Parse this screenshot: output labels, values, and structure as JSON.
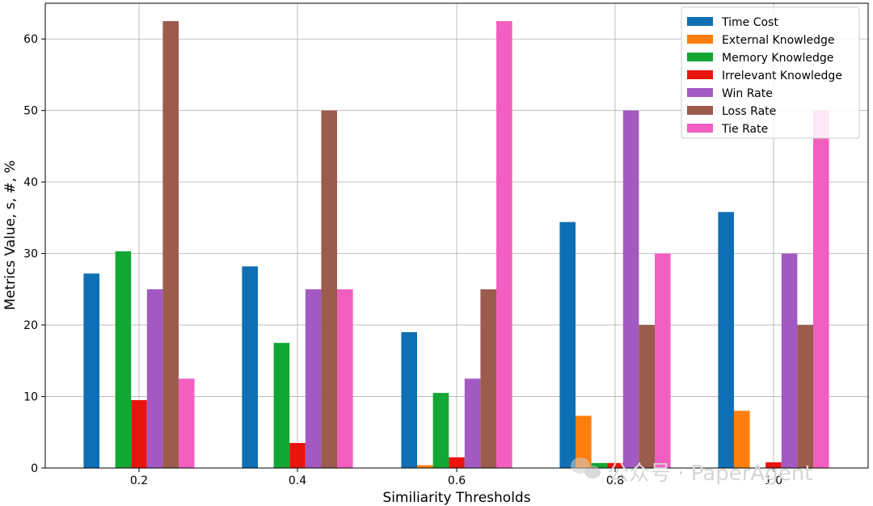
{
  "chart_data": {
    "type": "bar",
    "xlabel": "Similiarity Thresholds",
    "ylabel": "Metrics Value, s, #, %",
    "categories": [
      "0.2",
      "0.4",
      "0.6",
      "0.8",
      "1.0"
    ],
    "ylim": [
      0,
      65
    ],
    "yticks": [
      "0",
      "10",
      "20",
      "30",
      "40",
      "50",
      "60"
    ],
    "grid": true,
    "legend_position": "top-right",
    "series": [
      {
        "name": "Time Cost",
        "color": "#0f6fb4",
        "values": [
          27.2,
          28.2,
          19.0,
          34.4,
          35.8
        ]
      },
      {
        "name": "External Knowledge",
        "color": "#ff7f0e",
        "values": [
          0,
          0,
          0.4,
          7.3,
          8.0
        ]
      },
      {
        "name": "Memory Knowledge",
        "color": "#12a734",
        "values": [
          30.3,
          17.5,
          10.5,
          0.7,
          0
        ]
      },
      {
        "name": "Irrelevant Knowledge",
        "color": "#e8140e",
        "values": [
          9.5,
          3.5,
          1.5,
          0.7,
          0.8
        ]
      },
      {
        "name": "Win Rate",
        "color": "#a25ac2",
        "values": [
          25,
          25,
          12.5,
          50,
          30
        ]
      },
      {
        "name": "Loss Rate",
        "color": "#9b5b4d",
        "values": [
          62.5,
          50,
          25,
          20,
          20
        ]
      },
      {
        "name": "Tie Rate",
        "color": "#f35fc1",
        "values": [
          12.5,
          25,
          62.5,
          30,
          50
        ]
      }
    ]
  },
  "watermark": {
    "text": "公众号 · PaperAgent",
    "icon": "wechat-icon"
  }
}
